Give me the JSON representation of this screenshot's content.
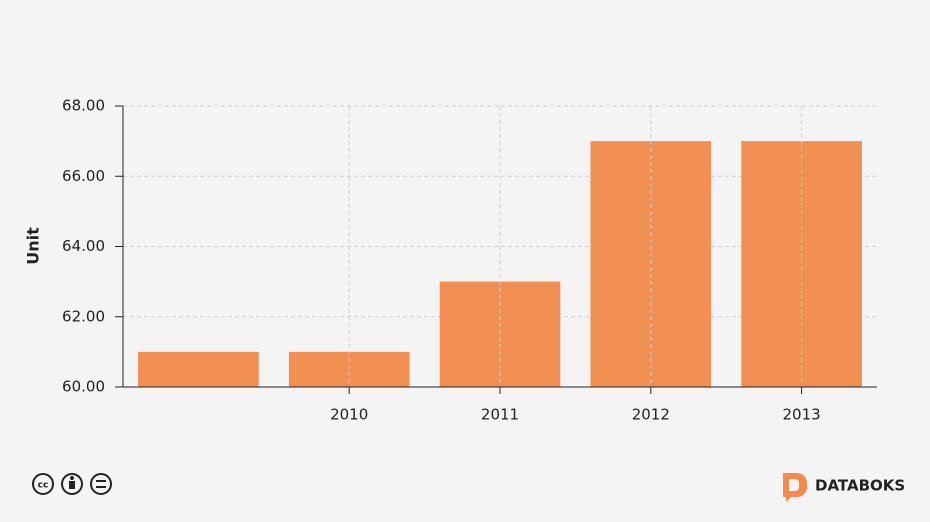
{
  "chart_data": {
    "type": "bar",
    "y_label": "Unit",
    "categories": [
      null,
      "2010",
      "2011",
      "2012",
      "2013"
    ],
    "values": [
      61,
      61,
      63,
      67,
      67
    ],
    "color": "#f28b4c",
    "ylim": [
      60,
      68
    ],
    "yticks": [
      {
        "value": 60,
        "label": "60.00"
      },
      {
        "value": 62,
        "label": "62.00"
      },
      {
        "value": 64,
        "label": "64.00"
      },
      {
        "value": 66,
        "label": "66.00"
      },
      {
        "value": 68,
        "label": "68.00"
      }
    ],
    "grid": true
  },
  "footer": {
    "brand": "DATABOKS"
  }
}
